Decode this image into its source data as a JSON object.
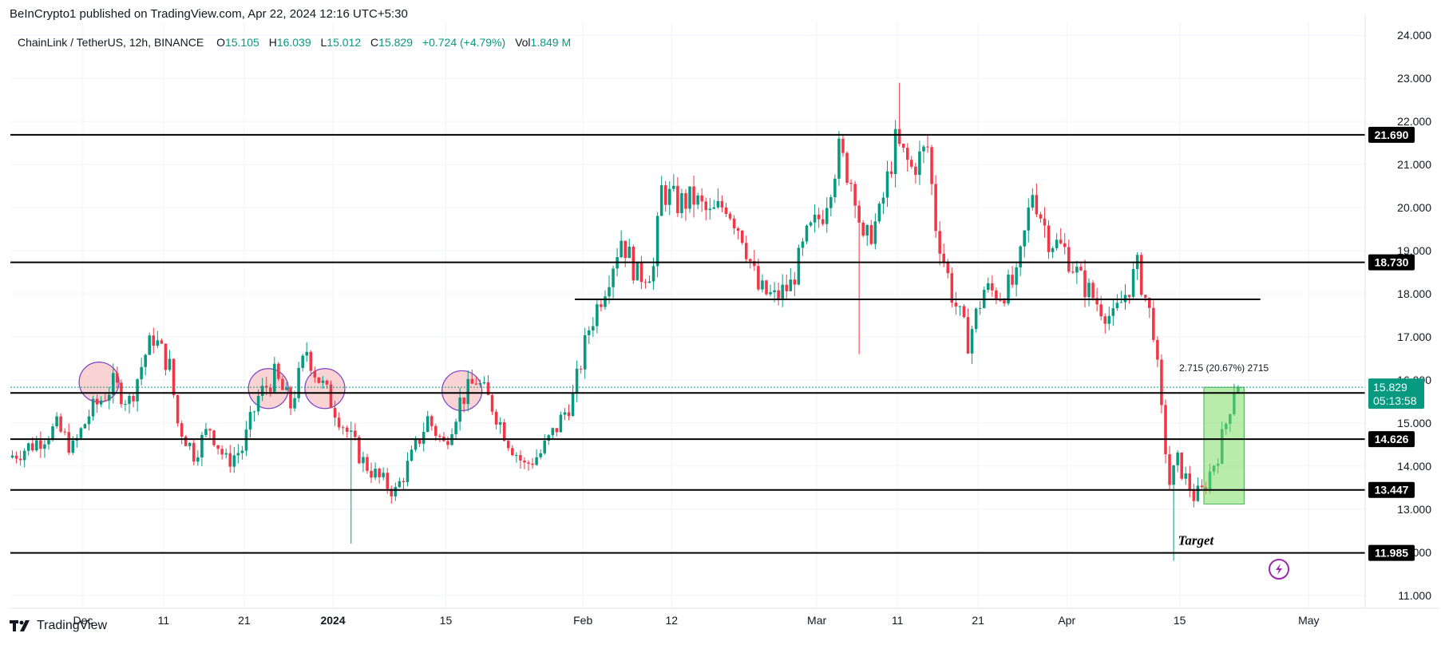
{
  "publisher": "BeInCrypto1 published on TradingView.com, Apr 22, 2024 12:16 UTC+5:30",
  "footer_brand": "TradingView",
  "colors": {
    "up": "#089981",
    "down": "#f23645",
    "text": "#131722",
    "grid": "#f0f3fa",
    "last_price": "#089981",
    "ohlc_value": "#089981",
    "circle_stroke": "#7b3fc4",
    "circle_fill": "#f8c8c8",
    "box_fill": "#7ddd65",
    "measure_text": "#131722"
  },
  "header": {
    "symbol": "ChainLink / TetherUS, 12h, BINANCE",
    "o_label": "O",
    "o_value": "15.105",
    "h_label": "H",
    "h_value": "16.039",
    "l_label": "L",
    "l_value": "15.012",
    "c_label": "C",
    "c_value": "15.829",
    "change": "+0.724 (+4.79%)",
    "vol_label": "Vol",
    "vol_value": "1.849 M"
  },
  "chart_data": {
    "type": "candlestick",
    "y_ticks": [
      "11.000",
      "12.000",
      "13.000",
      "14.000",
      "15.000",
      "16.000",
      "17.000",
      "18.000",
      "19.000",
      "20.000",
      "21.000",
      "22.000",
      "23.000",
      "24.000"
    ],
    "ylim": [
      10.7,
      24.3
    ],
    "x_ticks": [
      {
        "label": "Dec",
        "date": "2023-12-01",
        "bold": false
      },
      {
        "label": "11",
        "date": "2023-12-11",
        "bold": false
      },
      {
        "label": "21",
        "date": "2023-12-21",
        "bold": false
      },
      {
        "label": "2024",
        "date": "2024-01-01",
        "bold": true
      },
      {
        "label": "15",
        "date": "2024-01-15",
        "bold": false
      },
      {
        "label": "Feb",
        "date": "2024-02-01",
        "bold": false
      },
      {
        "label": "12",
        "date": "2024-02-12",
        "bold": false
      },
      {
        "label": "Mar",
        "date": "2024-03-01",
        "bold": false
      },
      {
        "label": "11",
        "date": "2024-03-11",
        "bold": false
      },
      {
        "label": "21",
        "date": "2024-03-21",
        "bold": false
      },
      {
        "label": "Apr",
        "date": "2024-04-01",
        "bold": false
      },
      {
        "label": "15",
        "date": "2024-04-15",
        "bold": false
      },
      {
        "label": "May",
        "date": "2024-05-01",
        "bold": false
      }
    ],
    "xlim": [
      "2023-11-22",
      "2024-05-08"
    ],
    "levels": [
      {
        "value": 21.69,
        "label": "21.690",
        "from": "2023-11-22",
        "to": "2024-05-08"
      },
      {
        "value": 18.73,
        "label": "18.730",
        "from": "2023-11-22",
        "to": "2024-05-08"
      },
      {
        "value": 17.87,
        "label": "",
        "from": "2024-01-31",
        "to": "2024-04-25"
      },
      {
        "value": 15.698,
        "label": "15.698",
        "from": "2023-11-22",
        "to": "2024-05-08"
      },
      {
        "value": 14.626,
        "label": "14.626",
        "from": "2023-11-22",
        "to": "2024-05-08"
      },
      {
        "value": 13.447,
        "label": "13.447",
        "from": "2023-11-22",
        "to": "2024-05-08"
      },
      {
        "value": 11.985,
        "label": "11.985",
        "from": "2023-11-22",
        "to": "2024-05-08"
      }
    ],
    "last_price": {
      "value": 15.829,
      "label": "15.829",
      "countdown": "05:13:58"
    },
    "circles": [
      {
        "date": "2023-12-03",
        "value": 15.95
      },
      {
        "date": "2023-12-24",
        "value": 15.8
      },
      {
        "date": "2023-12-31",
        "value": 15.8
      },
      {
        "date": "2024-01-17",
        "value": 15.75
      }
    ],
    "measure_box": {
      "from": "2024-04-18",
      "to": "2024-04-22",
      "low": 13.12,
      "high": 15.83,
      "label": "2.715 (20.67%) 2715"
    },
    "annotations": [
      {
        "text": "Target",
        "date": "2024-04-17",
        "value": 12.25
      }
    ],
    "path": [
      [
        "2023-11-22",
        14.2
      ],
      [
        "2023-11-25",
        14.5
      ],
      [
        "2023-11-28",
        14.9
      ],
      [
        "2023-11-30",
        14.4
      ],
      [
        "2023-12-02",
        15.2
      ],
      [
        "2023-12-05",
        15.9
      ],
      [
        "2023-12-07",
        15.5
      ],
      [
        "2023-12-09",
        16.6
      ],
      [
        "2023-12-10",
        17.0
      ],
      [
        "2023-12-12",
        16.3
      ],
      [
        "2023-12-13",
        15.0
      ],
      [
        "2023-12-15",
        14.3
      ],
      [
        "2023-12-17",
        14.9
      ],
      [
        "2023-12-19",
        14.1
      ],
      [
        "2023-12-21",
        14.4
      ],
      [
        "2023-12-23",
        15.6
      ],
      [
        "2023-12-25",
        16.1
      ],
      [
        "2023-12-27",
        15.4
      ],
      [
        "2023-12-29",
        16.7
      ],
      [
        "2023-12-30",
        16.2
      ],
      [
        "2024-01-01",
        15.5
      ],
      [
        "2024-01-03",
        14.8
      ],
      [
        "2024-01-05",
        14.1
      ],
      [
        "2024-01-07",
        13.7
      ],
      [
        "2024-01-09",
        13.4
      ],
      [
        "2024-01-11",
        14.2
      ],
      [
        "2024-01-13",
        15.1
      ],
      [
        "2024-01-15",
        14.5
      ],
      [
        "2024-01-17",
        15.5
      ],
      [
        "2024-01-19",
        16.0
      ],
      [
        "2024-01-21",
        15.4
      ],
      [
        "2024-01-23",
        14.6
      ],
      [
        "2024-01-25",
        14.0
      ],
      [
        "2024-01-27",
        14.3
      ],
      [
        "2024-01-29",
        14.9
      ],
      [
        "2024-01-31",
        15.6
      ],
      [
        "2024-02-02",
        17.2
      ],
      [
        "2024-02-04",
        18.2
      ],
      [
        "2024-02-06",
        19.3
      ],
      [
        "2024-02-08",
        18.4
      ],
      [
        "2024-02-10",
        18.6
      ],
      [
        "2024-02-11",
        20.4
      ],
      [
        "2024-02-13",
        20.1
      ],
      [
        "2024-02-15",
        20.2
      ],
      [
        "2024-02-17",
        19.8
      ],
      [
        "2024-02-19",
        20.1
      ],
      [
        "2024-02-21",
        19.4
      ],
      [
        "2024-02-23",
        18.1
      ],
      [
        "2024-02-25",
        17.9
      ],
      [
        "2024-02-27",
        18.2
      ],
      [
        "2024-02-29",
        19.3
      ],
      [
        "2024-03-02",
        19.9
      ],
      [
        "2024-03-04",
        21.3
      ],
      [
        "2024-03-06",
        20.4
      ],
      [
        "2024-03-07",
        19.1
      ],
      [
        "2024-03-09",
        19.8
      ],
      [
        "2024-03-11",
        21.5
      ],
      [
        "2024-03-13",
        20.9
      ],
      [
        "2024-03-15",
        21.4
      ],
      [
        "2024-03-16",
        19.6
      ],
      [
        "2024-03-18",
        18.0
      ],
      [
        "2024-03-20",
        16.9
      ],
      [
        "2024-03-22",
        18.1
      ],
      [
        "2024-03-24",
        18.0
      ],
      [
        "2024-03-26",
        18.3
      ],
      [
        "2024-03-28",
        20.4
      ],
      [
        "2024-03-30",
        19.3
      ],
      [
        "2024-04-01",
        19.0
      ],
      [
        "2024-04-03",
        18.3
      ],
      [
        "2024-04-05",
        17.8
      ],
      [
        "2024-04-07",
        17.4
      ],
      [
        "2024-04-09",
        18.2
      ],
      [
        "2024-04-10",
        18.6
      ],
      [
        "2024-04-12",
        17.2
      ],
      [
        "2024-04-13",
        15.2
      ],
      [
        "2024-04-14",
        13.6
      ],
      [
        "2024-04-15",
        14.1
      ],
      [
        "2024-04-17",
        13.3
      ],
      [
        "2024-04-18",
        13.4
      ],
      [
        "2024-04-20",
        14.3
      ],
      [
        "2024-04-21",
        15.0
      ],
      [
        "2024-04-22",
        15.83
      ]
    ],
    "wicks": [
      {
        "date": "2024-01-03",
        "low": 12.2
      },
      {
        "date": "2024-03-06",
        "low": 16.6
      },
      {
        "date": "2024-03-11",
        "high": 22.9
      },
      {
        "date": "2024-04-14",
        "low": 11.8
      }
    ]
  }
}
